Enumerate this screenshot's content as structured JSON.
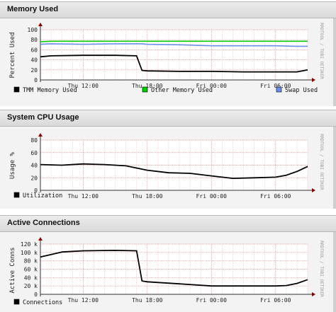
{
  "panels": [
    {
      "title": "Memory Used",
      "ylabel": "Percent Used",
      "watermark": "RRDTOOL / TOBI OETIKER",
      "yticks": [
        "100",
        "80",
        "60",
        "40",
        "20",
        "0"
      ],
      "xticks": [
        "Thu 12:00",
        "Thu 18:00",
        "Fri 00:00",
        "Fri 06:00"
      ],
      "legend": [
        {
          "label": "TMM Memory Used",
          "color": "#000000"
        },
        {
          "label": "Other Memory Used",
          "color": "#00cc00"
        },
        {
          "label": "Swap Used",
          "color": "#6b8ee8"
        }
      ]
    },
    {
      "title": "System CPU Usage",
      "ylabel": "Usage %",
      "watermark": "RRDTOOL / TOBI OETIKER",
      "yticks": [
        "80",
        "60",
        "40",
        "20",
        "0"
      ],
      "xticks": [
        "Thu 12:00",
        "Thu 18:00",
        "Fri 00:00",
        "Fri 06:00"
      ],
      "legend": [
        {
          "label": "Utilization",
          "color": "#000000"
        }
      ]
    },
    {
      "title": "Active Connections",
      "ylabel": "Active Conns",
      "watermark": "RRDTOOL / TOBI OETIKER",
      "yticks": [
        "120 k",
        "100 k",
        "80 k",
        "60 k",
        "40 k",
        "20 k",
        "0"
      ],
      "xticks": [
        "Thu 12:00",
        "Thu 18:00",
        "Fri 00:00",
        "Fri 06:00"
      ],
      "legend": [
        {
          "label": "Connections",
          "color": "#000000"
        }
      ]
    }
  ],
  "chart_data": [
    {
      "type": "line",
      "title": "Memory Used",
      "ylabel": "Percent Used",
      "ylim": [
        0,
        100
      ],
      "x_range": [
        "Thu 08:00",
        "Fri 09:00"
      ],
      "x_ticks": [
        "Thu 12:00",
        "Thu 18:00",
        "Fri 00:00",
        "Fri 06:00"
      ],
      "grid": true,
      "x": [
        "Thu 08:00",
        "Thu 09:00",
        "Thu 12:00",
        "Thu 15:00",
        "Thu 17:00",
        "Thu 17:30",
        "Thu 18:00",
        "Thu 21:00",
        "Fri 00:00",
        "Fri 03:00",
        "Fri 06:00",
        "Fri 08:00",
        "Fri 09:00"
      ],
      "series": [
        {
          "name": "TMM Memory Used",
          "color": "#000000",
          "values": [
            46,
            48,
            49,
            49,
            48,
            19,
            18,
            17,
            17,
            16,
            16,
            16,
            20
          ]
        },
        {
          "name": "Other Memory Used",
          "color": "#00cc00",
          "values": [
            76,
            77,
            77,
            77,
            77,
            77,
            77,
            77,
            77,
            77,
            77,
            77,
            77
          ]
        },
        {
          "name": "Swap Used",
          "color": "#6b8ee8",
          "values": [
            71,
            72,
            71,
            72,
            72,
            72,
            71,
            70,
            68,
            68,
            68,
            67,
            67
          ]
        }
      ]
    },
    {
      "type": "line",
      "title": "System CPU Usage",
      "ylabel": "Usage %",
      "ylim": [
        0,
        80
      ],
      "x_range": [
        "Thu 08:00",
        "Fri 09:00"
      ],
      "x_ticks": [
        "Thu 12:00",
        "Thu 18:00",
        "Fri 00:00",
        "Fri 06:00"
      ],
      "grid": true,
      "x": [
        "Thu 08:00",
        "Thu 10:00",
        "Thu 12:00",
        "Thu 14:00",
        "Thu 16:00",
        "Thu 18:00",
        "Thu 20:00",
        "Thu 22:00",
        "Fri 00:00",
        "Fri 02:00",
        "Fri 04:00",
        "Fri 06:00",
        "Fri 07:00",
        "Fri 08:00",
        "Fri 09:00"
      ],
      "series": [
        {
          "name": "Utilization",
          "color": "#000000",
          "values": [
            41,
            40,
            42,
            41,
            39,
            32,
            28,
            27,
            23,
            19,
            20,
            21,
            24,
            30,
            38
          ]
        }
      ]
    },
    {
      "type": "line",
      "title": "Active Connections",
      "ylabel": "Active Conns",
      "ylim": [
        0,
        120000
      ],
      "x_range": [
        "Thu 08:00",
        "Fri 09:00"
      ],
      "x_ticks": [
        "Thu 12:00",
        "Thu 18:00",
        "Fri 00:00",
        "Fri 06:00"
      ],
      "grid": true,
      "x": [
        "Thu 08:00",
        "Thu 10:00",
        "Thu 12:00",
        "Thu 15:00",
        "Thu 17:00",
        "Thu 17:30",
        "Thu 18:00",
        "Thu 21:00",
        "Fri 00:00",
        "Fri 03:00",
        "Fri 06:00",
        "Fri 07:00",
        "Fri 08:00",
        "Fri 09:00"
      ],
      "series": [
        {
          "name": "Connections",
          "color": "#000000",
          "values": [
            89000,
            101000,
            104000,
            105000,
            104000,
            32000,
            30000,
            25000,
            20000,
            20000,
            20000,
            21000,
            26000,
            35000
          ]
        }
      ]
    }
  ]
}
